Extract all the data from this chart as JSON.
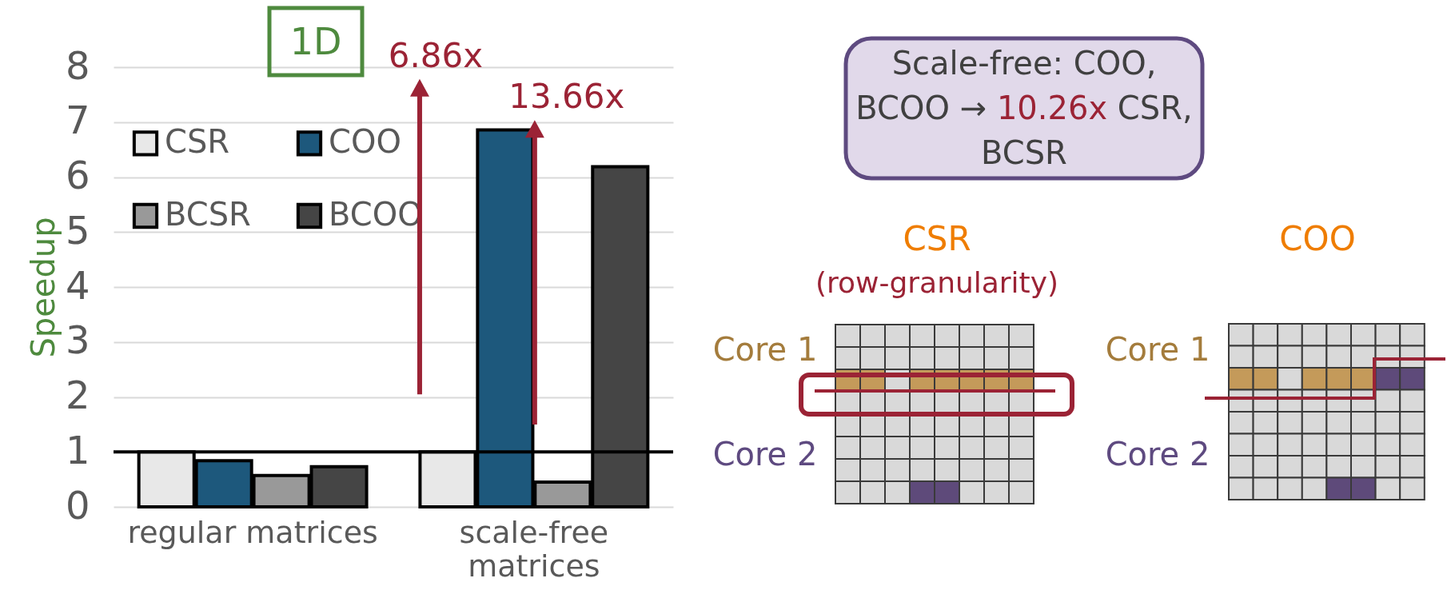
{
  "chart_data": {
    "type": "bar",
    "categories": [
      "regular matrices",
      "scale-free matrices"
    ],
    "series": [
      {
        "name": "CSR",
        "color": "#e8e8e8",
        "values": [
          1.0,
          1.0
        ]
      },
      {
        "name": "COO",
        "color": "#1d587c",
        "values": [
          0.84,
          6.86
        ]
      },
      {
        "name": "BCSR",
        "color": "#999999",
        "values": [
          0.57,
          0.45
        ]
      },
      {
        "name": "BCOO",
        "color": "#454545",
        "values": [
          0.73,
          6.19
        ]
      }
    ],
    "ylabel": "Speedup",
    "ylim": [
      0,
      8
    ],
    "yticks": [
      0,
      1,
      2,
      3,
      4,
      5,
      6,
      7,
      8
    ],
    "grid": "y",
    "legend": "top left",
    "ref_lines": [
      {
        "axis": "y",
        "value": 1,
        "color": "#000000"
      }
    ],
    "annotations": [
      "1D",
      "6.86x",
      "13.66x",
      "Scale-free: COO, BCOO → 10.26x CSR, BCSR",
      "CSR",
      "(row-granularity)",
      "Core 1",
      "Core 2",
      "COO",
      "Core 1",
      "Core 2"
    ]
  }
}
